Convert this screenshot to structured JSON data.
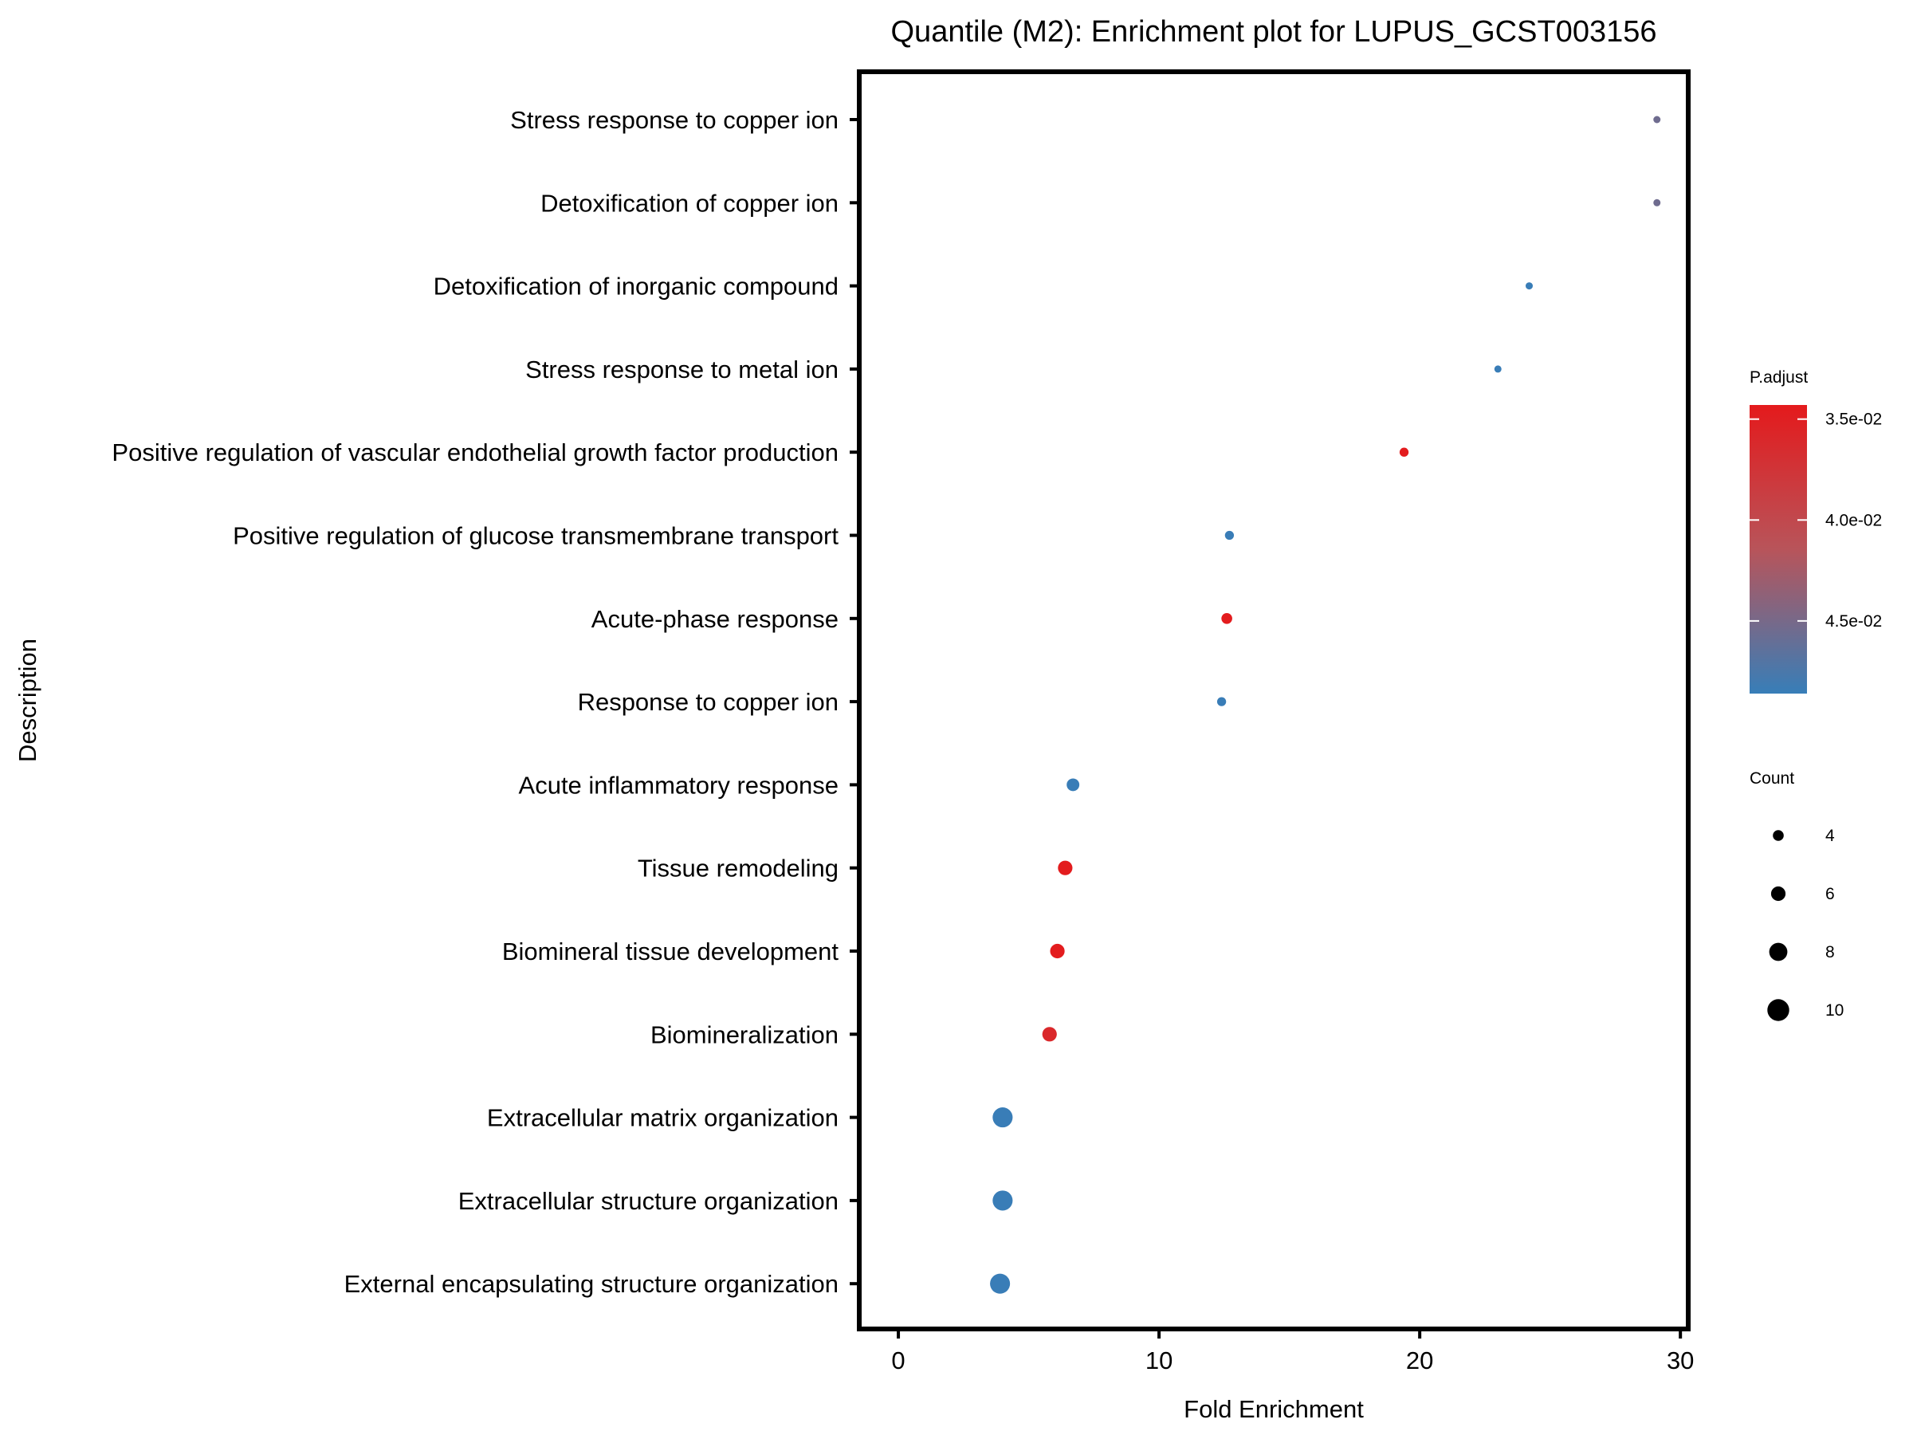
{
  "chart_data": {
    "type": "scatter",
    "title": "Quantile (M2): Enrichment plot for LUPUS_GCST003156",
    "xlabel": "Fold Enrichment",
    "ylabel": "Description",
    "xlim": [
      -1.5,
      30.3
    ],
    "xticks": [
      0,
      10,
      20,
      30
    ],
    "grid": false,
    "legend_position": "right",
    "categories": [
      "Stress response to copper ion",
      "Detoxification of copper ion",
      "Detoxification of inorganic compound",
      "Stress response to metal ion",
      "Positive regulation of vascular endothelial growth factor production",
      "Positive regulation of glucose transmembrane transport",
      "Acute-phase response",
      "Response to copper ion",
      "Acute inflammatory response",
      "Tissue remodeling",
      "Biomineral tissue development",
      "Biomineralization",
      "Extracellular matrix organization",
      "Extracellular structure organization",
      "External encapsulating structure organization"
    ],
    "points": [
      {
        "description": "Stress response to copper ion",
        "fold_enrichment": 29.1,
        "count": 2,
        "p_adjust": 0.0455
      },
      {
        "description": "Detoxification of copper ion",
        "fold_enrichment": 29.1,
        "count": 2,
        "p_adjust": 0.0455
      },
      {
        "description": "Detoxification of inorganic compound",
        "fold_enrichment": 24.2,
        "count": 2,
        "p_adjust": 0.0485
      },
      {
        "description": "Stress response to metal ion",
        "fold_enrichment": 23.0,
        "count": 2,
        "p_adjust": 0.0485
      },
      {
        "description": "Positive regulation of vascular endothelial growth factor production",
        "fold_enrichment": 19.4,
        "count": 3,
        "p_adjust": 0.0345
      },
      {
        "description": "Positive regulation of glucose transmembrane transport",
        "fold_enrichment": 12.7,
        "count": 3,
        "p_adjust": 0.0485
      },
      {
        "description": "Acute-phase response",
        "fold_enrichment": 12.6,
        "count": 4,
        "p_adjust": 0.0345
      },
      {
        "description": "Response to copper ion",
        "fold_enrichment": 12.4,
        "count": 3,
        "p_adjust": 0.0485
      },
      {
        "description": "Acute inflammatory response",
        "fold_enrichment": 6.7,
        "count": 5,
        "p_adjust": 0.0485
      },
      {
        "description": "Tissue remodeling",
        "fold_enrichment": 6.4,
        "count": 6,
        "p_adjust": 0.0345
      },
      {
        "description": "Biomineral tissue development",
        "fold_enrichment": 6.1,
        "count": 6,
        "p_adjust": 0.0345
      },
      {
        "description": "Biomineralization",
        "fold_enrichment": 5.8,
        "count": 6,
        "p_adjust": 0.036
      },
      {
        "description": "Extracellular matrix organization",
        "fold_enrichment": 4.0,
        "count": 9,
        "p_adjust": 0.0485
      },
      {
        "description": "Extracellular structure organization",
        "fold_enrichment": 4.0,
        "count": 9,
        "p_adjust": 0.0485
      },
      {
        "description": "External encapsulating structure organization",
        "fold_enrichment": 3.9,
        "count": 9,
        "p_adjust": 0.0485
      }
    ],
    "color_legend": {
      "title": "P.adjust",
      "min": 0.0343,
      "max": 0.0486,
      "low_color": "#e41a1c",
      "high_color": "#377eb8",
      "mid_color": "#b8545a",
      "ticks": [
        {
          "value": 0.035,
          "label": "3.5e-02"
        },
        {
          "value": 0.04,
          "label": "4.0e-02"
        },
        {
          "value": 0.045,
          "label": "4.5e-02"
        }
      ]
    },
    "size_legend": {
      "title": "Count",
      "values": [
        4,
        6,
        8,
        10
      ],
      "min": 2,
      "max": 10
    }
  }
}
